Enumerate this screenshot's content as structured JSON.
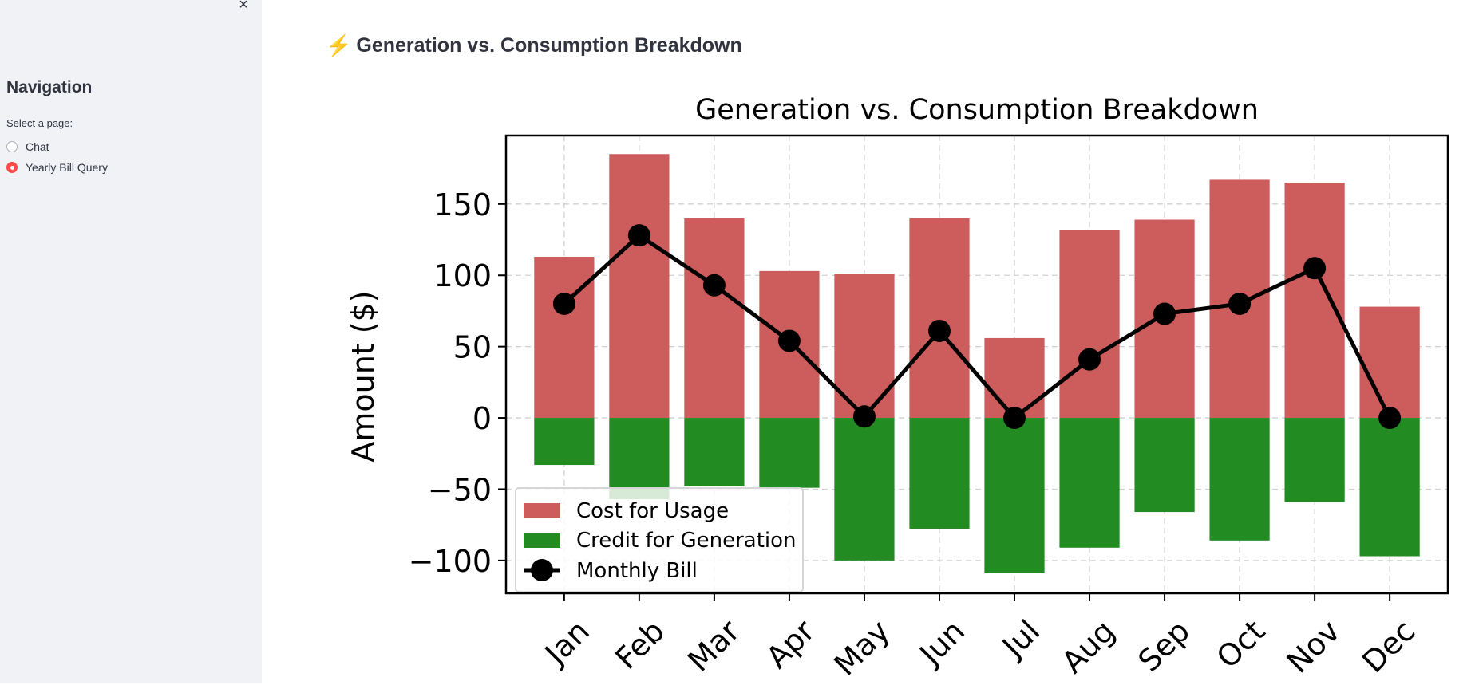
{
  "sidebar": {
    "close_icon": "×",
    "title": "Navigation",
    "radio_label": "Select a page:",
    "options": [
      {
        "label": "Chat",
        "selected": false
      },
      {
        "label": "Yearly Bill Query",
        "selected": true
      }
    ],
    "accent_color": "#ff4b4b"
  },
  "main": {
    "title_icon": "⚡",
    "title": "Generation vs. Consumption Breakdown"
  },
  "chart_data": {
    "type": "bar",
    "title": "Generation vs. Consumption Breakdown",
    "xlabel": "",
    "ylabel": "Amount ($)",
    "categories": [
      "Jan",
      "Feb",
      "Mar",
      "Apr",
      "May",
      "Jun",
      "Jul",
      "Aug",
      "Sep",
      "Oct",
      "Nov",
      "Dec"
    ],
    "series": [
      {
        "name": "Cost for Usage",
        "kind": "bar",
        "color": "#cd5c5c",
        "values": [
          113,
          185,
          140,
          103,
          101,
          140,
          56,
          132,
          139,
          167,
          165,
          78
        ]
      },
      {
        "name": "Credit for Generation",
        "kind": "bar",
        "color": "#228b22",
        "values": [
          -33,
          -57,
          -48,
          -49,
          -100,
          -78,
          -109,
          -91,
          -66,
          -86,
          -59,
          -97
        ]
      },
      {
        "name": "Monthly Bill",
        "kind": "line",
        "color": "#000000",
        "values": [
          80,
          128,
          93,
          54,
          1,
          61,
          0,
          41,
          73,
          80,
          105,
          0
        ]
      }
    ],
    "yticks": [
      -100,
      -50,
      0,
      50,
      100,
      150
    ],
    "ytick_labels": [
      "−100",
      "−50",
      "0",
      "50",
      "100",
      "150"
    ],
    "ylim": [
      -123,
      198
    ],
    "grid": true,
    "legend_position": "lower-left"
  }
}
